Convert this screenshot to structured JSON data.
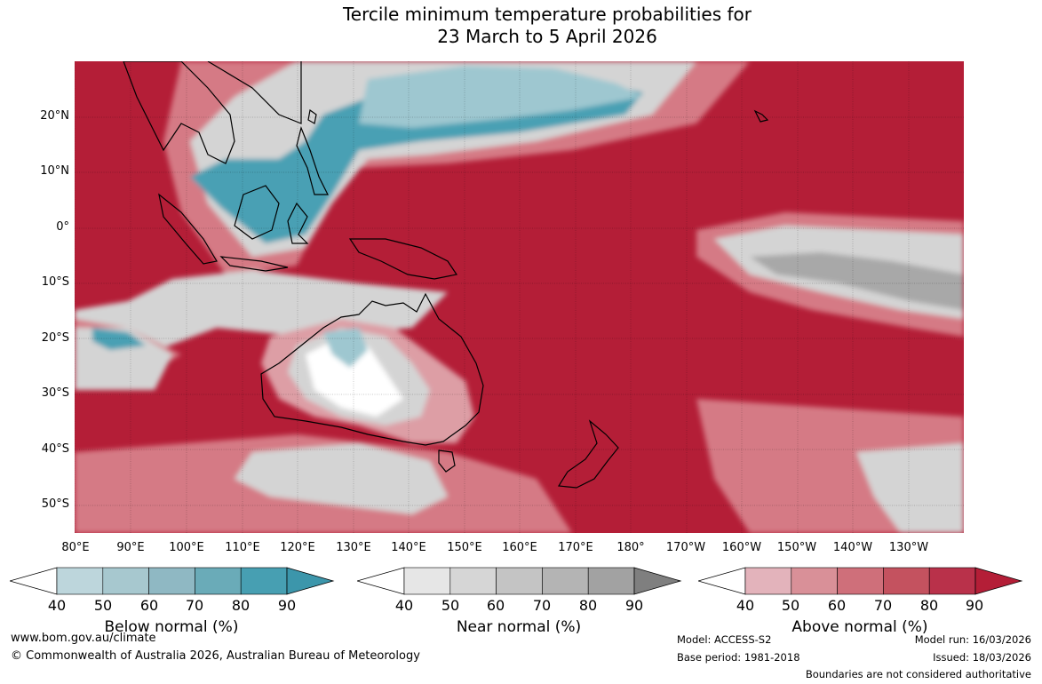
{
  "title": {
    "line1": "Tercile minimum temperature probabilities for",
    "line2": "23 March to 5 April 2026"
  },
  "map": {
    "lat_labels": [
      "20°N",
      "10°N",
      "0°",
      "10°S",
      "20°S",
      "30°S",
      "40°S",
      "50°S"
    ],
    "lon_labels": [
      "80°E",
      "90°E",
      "100°E",
      "110°E",
      "120°E",
      "130°E",
      "140°E",
      "150°E",
      "160°E",
      "170°E",
      "180°",
      "170°W",
      "160°W",
      "150°W",
      "140°W",
      "130°W"
    ],
    "colors": {
      "above90": "#b41e37",
      "above80": "#c23a4d",
      "above70": "#cd5a68",
      "above60": "#d57a85",
      "above50": "#dd9ea5",
      "near": "#d4d4d4",
      "near_dark": "#a8a8a8",
      "below": "#4aa0b4",
      "below_light": "#9ec7d0",
      "white": "#ffffff"
    }
  },
  "legends": [
    {
      "label": "Below normal (%)",
      "ticks": [
        "40",
        "50",
        "60",
        "70",
        "80",
        "90"
      ],
      "colors": [
        "#bdd6dc",
        "#a7c8cf",
        "#8fb8c3",
        "#6aabb8",
        "#479fb2",
        "#3c96ab"
      ]
    },
    {
      "label": "Near normal (%)",
      "ticks": [
        "40",
        "50",
        "60",
        "70",
        "80",
        "90"
      ],
      "colors": [
        "#e6e6e6",
        "#d6d6d6",
        "#c4c4c4",
        "#b4b4b4",
        "#a2a2a2",
        "#7f7f7f"
      ]
    },
    {
      "label": "Above normal (%)",
      "ticks": [
        "40",
        "50",
        "60",
        "70",
        "80",
        "90"
      ],
      "colors": [
        "#e3b3bb",
        "#d99098",
        "#cf6f7a",
        "#c4525f",
        "#b9314a",
        "#b41e37"
      ]
    }
  ],
  "footer": {
    "website": "www.bom.gov.au/climate",
    "copyright": "© Commonwealth of Australia 2026, Australian Bureau of Meteorology",
    "model": "Model: ACCESS-S2",
    "base_period": "Base period: 1981-2018",
    "model_run": "Model run: 16/03/2026",
    "issued": "Issued: 18/03/2026",
    "disclaimer": "Boundaries are not considered authoritative"
  }
}
